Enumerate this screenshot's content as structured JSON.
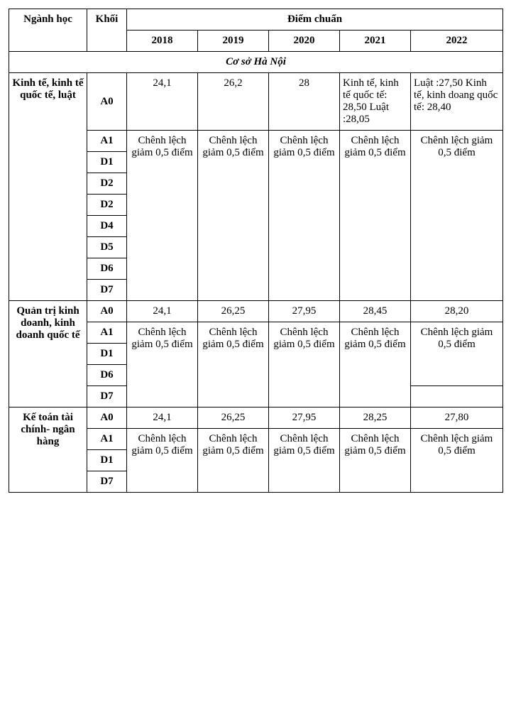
{
  "header": {
    "major": "Ngành học",
    "block": "Khối",
    "benchmark": "Điểm chuẩn",
    "years": [
      "2018",
      "2019",
      "2020",
      "2021",
      "2022"
    ]
  },
  "section": "Cơ sở Hà Nội",
  "majors": {
    "m1": {
      "name": "Kinh tế, kinh tế quốc tế, luật",
      "a0": {
        "2018": "24,1",
        "2019": "26,2",
        "2020": "28",
        "2021": "Kinh tế, kinh tế quốc tế: 28,50 Luật :28,05",
        "2022": "Luật :27,50 Kinh tế, kinh doang quốc tế: 28,40"
      },
      "other_blocks": [
        "A1",
        "D1",
        "D2",
        "D2",
        "D4",
        "D5",
        "D6",
        "D7"
      ],
      "other_note": {
        "2018": "Chênh lệch giảm 0,5 điểm",
        "2019": "Chênh lệch giảm 0,5 điểm",
        "2020": "Chênh lệch giảm 0,5 điểm",
        "2021": "Chênh lệch giảm 0,5 điểm",
        "2022": "Chênh lệch giảm 0,5 điểm"
      }
    },
    "m2": {
      "name": "Quản trị kinh doanh, kinh doanh quốc tế",
      "a0": {
        "2018": "24,1",
        "2019": "26,25",
        "2020": "27,95",
        "2021": "28,45",
        "2022": "28,20"
      },
      "other_blocks": [
        "A1",
        "D1",
        "D6",
        "D7"
      ],
      "other_note": {
        "2018": "Chênh lệch giảm 0,5 điểm",
        "2019": "Chênh lệch giảm 0,5 điểm",
        "2020": "Chênh lệch giảm 0,5 điểm",
        "2021": "Chênh lệch giảm 0,5 điểm",
        "2022": "Chênh lệch giảm 0,5 điểm"
      }
    },
    "m3": {
      "name": "Kế toán tài chính- ngân hàng",
      "a0": {
        "2018": "24,1",
        "2019": "26,25",
        "2020": "27,95",
        "2021": "28,25",
        "2022": "27,80"
      },
      "other_blocks": [
        "A1",
        "D1",
        "D7"
      ],
      "other_note": {
        "2018": "Chênh lệch giảm 0,5 điểm",
        "2019": "Chênh lệch giảm 0,5 điểm",
        "2020": "Chênh lệch giảm 0,5 điểm",
        "2021": "Chênh lệch giảm 0,5 điểm",
        "2022": "Chênh lệch giảm 0,5 điểm"
      }
    }
  },
  "blocks_label": {
    "a0": "A0"
  }
}
